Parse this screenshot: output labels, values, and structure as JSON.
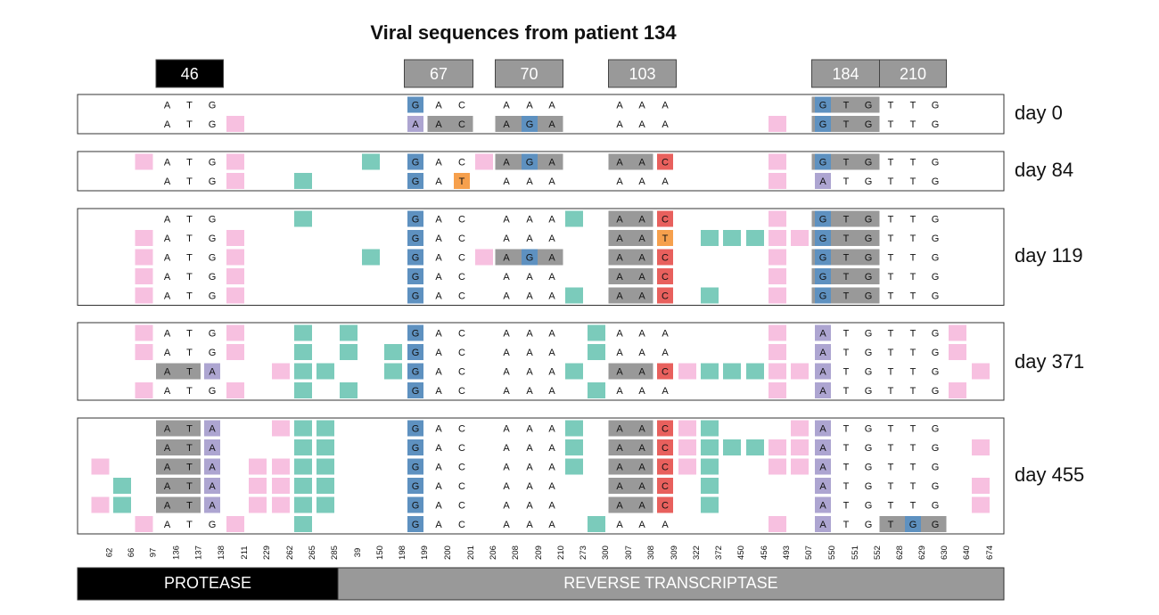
{
  "title": "Viral sequences from patient 134",
  "colors": {
    "pink": "#f7c0e0",
    "teal": "#7bcbbb",
    "blue": "#5e91c0",
    "purple": "#ada5d1",
    "orange": "#f6a04d",
    "red": "#e8605d",
    "gray": "#999999",
    "black": "#000000"
  },
  "headers": [
    {
      "label": "46",
      "color": "black"
    },
    {
      "label": "67",
      "color": "gray"
    },
    {
      "label": "70",
      "color": "gray"
    },
    {
      "label": "103",
      "color": "gray"
    },
    {
      "label": "184",
      "color": "gray"
    },
    {
      "label": "210",
      "color": "gray"
    }
  ],
  "positions": [
    "62",
    "66",
    "97",
    "136",
    "137",
    "138",
    "211",
    "229",
    "262",
    "265",
    "285",
    "39",
    "150",
    "198",
    "199",
    "200",
    "201",
    "206",
    "208",
    "209",
    "210",
    "273",
    "300",
    "307",
    "308",
    "309",
    "322",
    "372",
    "450",
    "456",
    "493",
    "507",
    "550",
    "551",
    "552",
    "628",
    "629",
    "630",
    "640",
    "674"
  ],
  "regions": [
    {
      "label": "PROTEASE",
      "color": "black"
    },
    {
      "label": "REVERSE TRANSCRIPTASE",
      "color": "gray"
    }
  ],
  "groups": [
    {
      "label": "day 0",
      "rows": [
        {
          "letters": [
            "A",
            "T",
            "G",
            "G",
            "A",
            "C",
            "A",
            "A",
            "A",
            "A",
            "A",
            "A",
            "G",
            "T",
            "G",
            "T",
            "T",
            "G"
          ],
          "colors": {
            "3": "",
            "4": "",
            "5": "",
            "14": "blue",
            "15": "",
            "16": "",
            "18": "",
            "19": "",
            "20": "",
            "23": "",
            "24": "",
            "25": "",
            "32": "blue",
            "33": "",
            "34": "",
            "35": "",
            "36": "",
            "37": ""
          },
          "bands": [
            [
              32,
              34
            ]
          ]
        },
        {
          "letters": [
            "A",
            "T",
            "G",
            "A",
            "A",
            "C",
            "A",
            "G",
            "A",
            "A",
            "A",
            "A",
            "G",
            "T",
            "G",
            "T",
            "T",
            "G"
          ],
          "colors": {
            "6": "pink",
            "14": "purple",
            "18": "",
            "19": "blue",
            "20": "",
            "30": "pink",
            "32": "blue"
          },
          "bands": [
            [
              15,
              16
            ],
            [
              18,
              20
            ],
            [
              32,
              34
            ]
          ]
        }
      ]
    },
    {
      "label": "day 84",
      "rows": [
        {
          "letters": [
            "A",
            "T",
            "G",
            "G",
            "A",
            "C",
            "A",
            "G",
            "A",
            "A",
            "A",
            "C",
            "G",
            "T",
            "G",
            "T",
            "T",
            "G"
          ],
          "colors": {
            "2": "pink",
            "6": "pink",
            "12": "teal",
            "14": "blue",
            "17": "pink",
            "19": "blue",
            "25": "red",
            "30": "pink",
            "32": "blue"
          },
          "bands": [
            [
              18,
              20
            ],
            [
              23,
              24
            ],
            [
              32,
              34
            ]
          ]
        },
        {
          "letters": [
            "A",
            "T",
            "G",
            "G",
            "A",
            "T",
            "A",
            "A",
            "A",
            "A",
            "A",
            "A",
            "A",
            "T",
            "G",
            "T",
            "T",
            "G"
          ],
          "colors": {
            "6": "pink",
            "9": "teal",
            "14": "blue",
            "16": "orange",
            "30": "pink",
            "32": "purple"
          },
          "bands": []
        }
      ]
    },
    {
      "label": "day 119",
      "rows": [
        {
          "letters": [
            "A",
            "T",
            "G",
            "G",
            "A",
            "C",
            "A",
            "A",
            "A",
            "A",
            "A",
            "C",
            "G",
            "T",
            "G",
            "T",
            "T",
            "G"
          ],
          "colors": {
            "9": "teal",
            "14": "blue",
            "21": "teal",
            "25": "red",
            "30": "pink",
            "32": "blue"
          },
          "bands": [
            [
              23,
              24
            ],
            [
              32,
              34
            ]
          ]
        },
        {
          "letters": [
            "A",
            "T",
            "G",
            "G",
            "A",
            "C",
            "A",
            "A",
            "A",
            "A",
            "A",
            "T",
            "G",
            "T",
            "G",
            "T",
            "T",
            "G"
          ],
          "colors": {
            "2": "pink",
            "6": "pink",
            "14": "blue",
            "25": "orange",
            "27": "teal",
            "28": "teal",
            "29": "teal",
            "30": "pink",
            "31": "pink",
            "32": "blue"
          },
          "bands": [
            [
              23,
              24
            ],
            [
              32,
              34
            ]
          ]
        },
        {
          "letters": [
            "A",
            "T",
            "G",
            "G",
            "A",
            "C",
            "A",
            "G",
            "A",
            "A",
            "A",
            "C",
            "G",
            "T",
            "G",
            "T",
            "T",
            "G"
          ],
          "colors": {
            "2": "pink",
            "6": "pink",
            "12": "teal",
            "14": "blue",
            "17": "pink",
            "19": "blue",
            "25": "red",
            "30": "pink",
            "32": "blue"
          },
          "bands": [
            [
              18,
              20
            ],
            [
              23,
              24
            ],
            [
              32,
              34
            ]
          ]
        },
        {
          "letters": [
            "A",
            "T",
            "G",
            "G",
            "A",
            "C",
            "A",
            "A",
            "A",
            "A",
            "A",
            "C",
            "G",
            "T",
            "G",
            "T",
            "T",
            "G"
          ],
          "colors": {
            "2": "pink",
            "6": "pink",
            "14": "blue",
            "25": "red",
            "30": "pink",
            "32": "blue"
          },
          "bands": [
            [
              23,
              24
            ],
            [
              32,
              34
            ]
          ]
        },
        {
          "letters": [
            "A",
            "T",
            "G",
            "G",
            "A",
            "C",
            "A",
            "A",
            "A",
            "A",
            "A",
            "C",
            "G",
            "T",
            "G",
            "T",
            "T",
            "G"
          ],
          "colors": {
            "2": "pink",
            "6": "pink",
            "14": "blue",
            "21": "teal",
            "25": "red",
            "27": "teal",
            "30": "pink",
            "32": "blue"
          },
          "bands": [
            [
              23,
              24
            ],
            [
              32,
              34
            ]
          ]
        }
      ]
    },
    {
      "label": "day 371",
      "rows": [
        {
          "letters": [
            "A",
            "T",
            "G",
            "G",
            "A",
            "C",
            "A",
            "A",
            "A",
            "A",
            "A",
            "A",
            "A",
            "T",
            "G",
            "T",
            "T",
            "G"
          ],
          "colors": {
            "2": "pink",
            "6": "pink",
            "9": "teal",
            "11": "teal",
            "14": "blue",
            "22": "teal",
            "30": "pink",
            "32": "purple",
            "38": "pink"
          },
          "bands": []
        },
        {
          "letters": [
            "A",
            "T",
            "G",
            "G",
            "A",
            "C",
            "A",
            "A",
            "A",
            "A",
            "A",
            "A",
            "A",
            "T",
            "G",
            "T",
            "T",
            "G"
          ],
          "colors": {
            "2": "pink",
            "6": "pink",
            "9": "teal",
            "11": "teal",
            "13": "teal",
            "14": "blue",
            "22": "teal",
            "30": "pink",
            "32": "purple",
            "38": "pink"
          },
          "bands": []
        },
        {
          "letters": [
            "A",
            "T",
            "A",
            "G",
            "A",
            "C",
            "A",
            "A",
            "A",
            "A",
            "A",
            "C",
            "A",
            "T",
            "G",
            "T",
            "T",
            "G"
          ],
          "colors": {
            "5": "purple",
            "8": "pink",
            "9": "teal",
            "10": "teal",
            "13": "teal",
            "14": "blue",
            "21": "teal",
            "25": "red",
            "26": "pink",
            "27": "teal",
            "28": "teal",
            "29": "teal",
            "30": "pink",
            "31": "pink",
            "32": "purple",
            "39": "pink"
          },
          "bands": [
            [
              3,
              4
            ],
            [
              23,
              24
            ]
          ]
        },
        {
          "letters": [
            "A",
            "T",
            "G",
            "G",
            "A",
            "C",
            "A",
            "A",
            "A",
            "A",
            "A",
            "A",
            "A",
            "T",
            "G",
            "T",
            "T",
            "G"
          ],
          "colors": {
            "2": "pink",
            "6": "pink",
            "9": "teal",
            "11": "teal",
            "14": "blue",
            "22": "teal",
            "30": "pink",
            "32": "purple",
            "38": "pink"
          },
          "bands": []
        }
      ]
    },
    {
      "label": "day 455",
      "rows": [
        {
          "letters": [
            "A",
            "T",
            "A",
            "G",
            "A",
            "C",
            "A",
            "A",
            "A",
            "A",
            "A",
            "C",
            "A",
            "T",
            "G",
            "T",
            "T",
            "G"
          ],
          "colors": {
            "5": "purple",
            "8": "pink",
            "9": "teal",
            "10": "teal",
            "14": "blue",
            "21": "teal",
            "25": "red",
            "26": "pink",
            "27": "teal",
            "31": "pink",
            "32": "purple"
          },
          "bands": [
            [
              3,
              4
            ],
            [
              23,
              24
            ]
          ]
        },
        {
          "letters": [
            "A",
            "T",
            "A",
            "G",
            "A",
            "C",
            "A",
            "A",
            "A",
            "A",
            "A",
            "C",
            "A",
            "T",
            "G",
            "T",
            "T",
            "G"
          ],
          "colors": {
            "5": "purple",
            "9": "teal",
            "10": "teal",
            "14": "blue",
            "21": "teal",
            "25": "red",
            "26": "pink",
            "27": "teal",
            "28": "teal",
            "29": "teal",
            "30": "pink",
            "31": "pink",
            "32": "purple",
            "39": "pink"
          },
          "bands": [
            [
              3,
              4
            ],
            [
              23,
              24
            ]
          ]
        },
        {
          "letters": [
            "A",
            "T",
            "A",
            "G",
            "A",
            "C",
            "A",
            "A",
            "A",
            "A",
            "A",
            "C",
            "A",
            "T",
            "G",
            "T",
            "T",
            "G"
          ],
          "colors": {
            "0": "pink",
            "5": "purple",
            "7": "pink",
            "8": "pink",
            "9": "teal",
            "10": "teal",
            "14": "blue",
            "21": "teal",
            "25": "red",
            "26": "pink",
            "27": "teal",
            "30": "pink",
            "31": "pink",
            "32": "purple"
          },
          "bands": [
            [
              3,
              4
            ],
            [
              23,
              24
            ]
          ]
        },
        {
          "letters": [
            "A",
            "T",
            "A",
            "G",
            "A",
            "C",
            "A",
            "A",
            "A",
            "A",
            "A",
            "C",
            "A",
            "T",
            "G",
            "T",
            "T",
            "G"
          ],
          "colors": {
            "1": "teal",
            "5": "purple",
            "7": "pink",
            "8": "pink",
            "9": "teal",
            "10": "teal",
            "14": "blue",
            "25": "red",
            "27": "teal",
            "32": "purple",
            "39": "pink"
          },
          "bands": [
            [
              3,
              4
            ],
            [
              23,
              24
            ]
          ]
        },
        {
          "letters": [
            "A",
            "T",
            "A",
            "G",
            "A",
            "C",
            "A",
            "A",
            "A",
            "A",
            "A",
            "C",
            "A",
            "T",
            "G",
            "T",
            "T",
            "G"
          ],
          "colors": {
            "0": "pink",
            "1": "teal",
            "5": "purple",
            "7": "pink",
            "8": "pink",
            "9": "teal",
            "10": "teal",
            "14": "blue",
            "25": "red",
            "27": "teal",
            "32": "purple",
            "39": "pink"
          },
          "bands": [
            [
              3,
              4
            ],
            [
              23,
              24
            ]
          ]
        },
        {
          "letters": [
            "A",
            "T",
            "G",
            "G",
            "A",
            "C",
            "A",
            "A",
            "A",
            "A",
            "A",
            "A",
            "A",
            "T",
            "G",
            "T",
            "G",
            "G"
          ],
          "colors": {
            "2": "pink",
            "6": "pink",
            "9": "teal",
            "14": "blue",
            "22": "teal",
            "30": "pink",
            "32": "purple",
            "36": "blue"
          },
          "bands": [
            [
              35,
              37
            ]
          ]
        }
      ]
    }
  ]
}
